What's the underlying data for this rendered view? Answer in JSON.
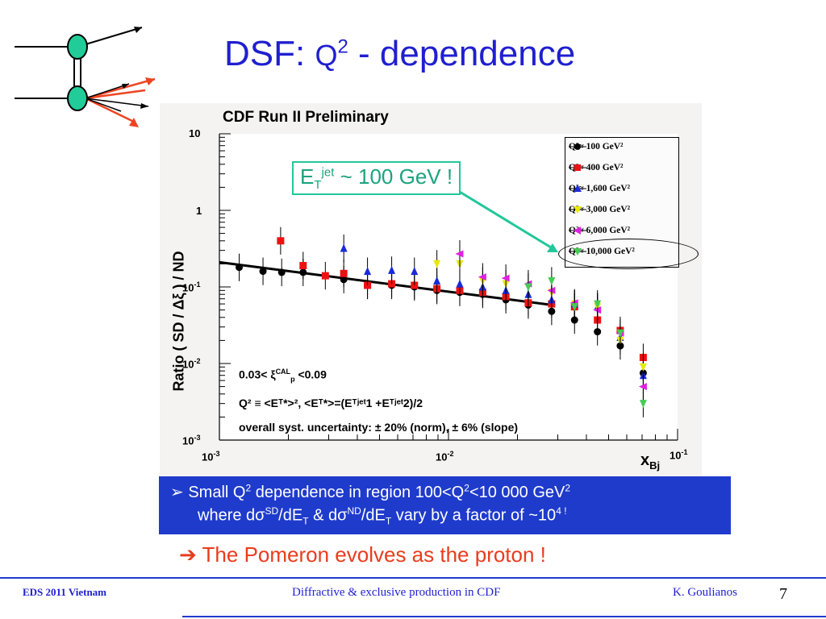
{
  "slide": {
    "title_main": "DSF: ",
    "title_q": "Q",
    "title_q_exp": "2",
    "title_rest": " - dependence"
  },
  "chart_data": {
    "type": "scatter",
    "title": "CDF Run II Preliminary",
    "xlabel": "x",
    "xlabel_sub": "Bj",
    "ylabel": "Ratio  ( SD /  Δξ ) / ND",
    "xscale": "log",
    "yscale": "log",
    "xlim": [
      0.001,
      0.1
    ],
    "ylim": [
      0.001,
      10
    ],
    "x_ticks": [
      {
        "base": "10",
        "exp": "-3"
      },
      {
        "base": "10",
        "exp": "-2"
      },
      {
        "base": "10",
        "exp": "-1"
      }
    ],
    "y_ticks": [
      {
        "base": "10",
        "exp": ""
      },
      {
        "base": "1",
        "exp": ""
      },
      {
        "base": "10",
        "exp": "-1"
      },
      {
        "base": "10",
        "exp": "-2"
      },
      {
        "base": "10",
        "exp": "-3"
      }
    ],
    "legend_position": "top-right",
    "series": [
      {
        "name": "Q²≈  100 GeV²",
        "color": "#000000",
        "marker": "circle",
        "x": [
          0.00122,
          0.00155,
          0.00187,
          0.00232,
          0.00349,
          0.00443,
          0.00565,
          0.0071,
          0.0089,
          0.0112,
          0.0141,
          0.0178,
          0.0223,
          0.0282,
          0.0355,
          0.0447,
          0.0562,
          0.0708
        ],
        "y": [
          0.18,
          0.16,
          0.155,
          0.155,
          0.125,
          0.105,
          0.105,
          0.1,
          0.09,
          0.085,
          0.08,
          0.068,
          0.058,
          0.048,
          0.037,
          0.026,
          0.017,
          0.0075
        ]
      },
      {
        "name": "Q²≈  400 GeV²",
        "color": "#ee1111",
        "marker": "square",
        "x": [
          0.00185,
          0.00232,
          0.0029,
          0.00349,
          0.00443,
          0.00565,
          0.0071,
          0.0089,
          0.0112,
          0.0141,
          0.0178,
          0.0223,
          0.0282,
          0.0355,
          0.0447,
          0.0562,
          0.0708
        ],
        "y": [
          0.4,
          0.19,
          0.14,
          0.15,
          0.105,
          0.11,
          0.105,
          0.095,
          0.09,
          0.085,
          0.075,
          0.062,
          0.06,
          0.055,
          0.037,
          0.027,
          0.012
        ]
      },
      {
        "name": "Q²≈  1,600 GeV²",
        "color": "#1a2ad8",
        "marker": "triangle-up",
        "x": [
          0.00349,
          0.00443,
          0.00565,
          0.0071,
          0.0089,
          0.0112,
          0.0141,
          0.0178,
          0.0223,
          0.0282,
          0.0355,
          0.0447,
          0.0562,
          0.0708
        ],
        "y": [
          0.32,
          0.16,
          0.165,
          0.16,
          0.12,
          0.11,
          0.1,
          0.09,
          0.08,
          0.068,
          0.06,
          0.055,
          0.022,
          0.007
        ]
      },
      {
        "name": "Q²≈  3,000 GeV²",
        "color": "#e8e800",
        "marker": "triangle-down",
        "x": [
          0.0089,
          0.0112,
          0.0141,
          0.0178,
          0.0223,
          0.0282,
          0.0355,
          0.0447,
          0.0562,
          0.0708
        ],
        "y": [
          0.2,
          0.2,
          0.12,
          0.11,
          0.1,
          0.085,
          0.06,
          0.055,
          0.02,
          0.009
        ]
      },
      {
        "name": "Q²≈  6,000 GeV²",
        "color": "#e020e0",
        "marker": "triangle-left",
        "x": [
          0.0112,
          0.0141,
          0.0178,
          0.0223,
          0.0282,
          0.0355,
          0.0447,
          0.0562,
          0.0708
        ],
        "y": [
          0.27,
          0.135,
          0.13,
          0.11,
          0.09,
          0.062,
          0.05,
          0.025,
          0.005
        ]
      },
      {
        "name": "Q²≈ 10,000 GeV²",
        "color": "#44cc55",
        "marker": "triangle-down",
        "x": [
          0.0223,
          0.0282,
          0.0355,
          0.0447,
          0.0562,
          0.0708
        ],
        "y": [
          0.1,
          0.12,
          0.055,
          0.06,
          0.025,
          0.003
        ]
      }
    ],
    "fit_line": {
      "x": [
        0.001,
        0.0285
      ],
      "y": [
        0.21,
        0.058
      ]
    },
    "annotations": {
      "cut_prefix": "0.03< ",
      "cut_xi": "ξ",
      "cut_xi_sup": "CAL",
      "cut_xi_sub": "p",
      "cut_suffix": " <0.09",
      "q2_def": "Q² ≡ <Eᵀ*>²,  <Eᵀ*>=(Eᵀʲᵉᵗ1 +Eᵀʲᵉᵗ2)/2",
      "syst": "overall syst. uncertainty: ± 20% (norm), ± 6% (slope)"
    }
  },
  "callout": {
    "e": "E",
    "t_sub": "T",
    "jet_sup": "jet",
    "rest": " ~ 100 GeV !"
  },
  "bullet": {
    "marker": "➢",
    "line1_a": "  Small Q",
    "line1_exp1": "2",
    "line1_b": " dependence in region 100<Q",
    "line1_exp2": "2",
    "line1_c": "<10 000 GeV",
    "line1_exp3": "2",
    "line2_a": "where dσ",
    "line2_sup1": "SD",
    "line2_b": "/dE",
    "line2_sub1": "T",
    "line2_c": " & dσ",
    "line2_sup2": "ND",
    "line2_d": "/dE",
    "line2_sub2": "T",
    "line2_e": " vary by a factor of ~10",
    "line2_sup3": "4 !"
  },
  "conclusion": {
    "arrow": "➔",
    "text": " The Pomeron evolves as the proton !"
  },
  "footer": {
    "left": "EDS 2011 Vietnam",
    "center": "Diffractive & exclusive production in CDF",
    "right": "K. Goulianos",
    "page": "7"
  },
  "colors": {
    "title": "#1f1fd0",
    "bullet_bg": "#1f3bcc",
    "conclusion": "#e83c1c",
    "callout": "#22c79b",
    "node": "#22cc99",
    "arrow_red": "#ee4422"
  }
}
